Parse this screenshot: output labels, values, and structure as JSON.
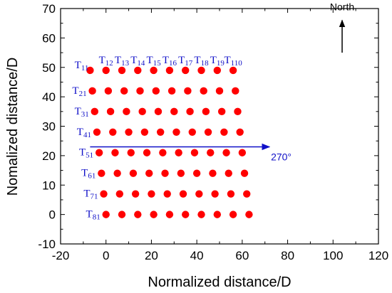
{
  "chart_data": {
    "type": "scatter",
    "title": "",
    "xlabel": "Normalized distance/D",
    "ylabel": "Nomalized distance/D",
    "xlim": [
      -20,
      120
    ],
    "ylim": [
      -10,
      70
    ],
    "x_ticks": [
      "-20",
      "0",
      "20",
      "40",
      "60",
      "80",
      "100",
      "120"
    ],
    "y_ticks": [
      "-10",
      "0",
      "10",
      "20",
      "30",
      "40",
      "50",
      "60",
      "70"
    ],
    "marker_color": "#ff0000",
    "series": [
      {
        "label": "T81",
        "points": [
          [
            0,
            0
          ],
          [
            7,
            0
          ],
          [
            14,
            0
          ],
          [
            21,
            0
          ],
          [
            28,
            0
          ],
          [
            35,
            0
          ],
          [
            42,
            0
          ],
          [
            49,
            0
          ],
          [
            56,
            0
          ],
          [
            63,
            0
          ]
        ]
      },
      {
        "label": "T71",
        "points": [
          [
            -1,
            7
          ],
          [
            6,
            7
          ],
          [
            13,
            7
          ],
          [
            20,
            7
          ],
          [
            27,
            7
          ],
          [
            34,
            7
          ],
          [
            41,
            7
          ],
          [
            48,
            7
          ],
          [
            55,
            7
          ],
          [
            62,
            7
          ]
        ]
      },
      {
        "label": "T61",
        "points": [
          [
            -2,
            14
          ],
          [
            5,
            14
          ],
          [
            12,
            14
          ],
          [
            19,
            14
          ],
          [
            26,
            14
          ],
          [
            33,
            14
          ],
          [
            40,
            14
          ],
          [
            47,
            14
          ],
          [
            54,
            14
          ],
          [
            61,
            14
          ]
        ]
      },
      {
        "label": "T51",
        "points": [
          [
            -3,
            21
          ],
          [
            4,
            21
          ],
          [
            11,
            21
          ],
          [
            18,
            21
          ],
          [
            25,
            21
          ],
          [
            32,
            21
          ],
          [
            39,
            21
          ],
          [
            46,
            21
          ],
          [
            53,
            21
          ],
          [
            60,
            21
          ]
        ]
      },
      {
        "label": "T41",
        "points": [
          [
            -4,
            28
          ],
          [
            3,
            28
          ],
          [
            10,
            28
          ],
          [
            17,
            28
          ],
          [
            24,
            28
          ],
          [
            31,
            28
          ],
          [
            38,
            28
          ],
          [
            45,
            28
          ],
          [
            52,
            28
          ],
          [
            59,
            28
          ]
        ]
      },
      {
        "label": "T31",
        "points": [
          [
            -5,
            35
          ],
          [
            2,
            35
          ],
          [
            9,
            35
          ],
          [
            16,
            35
          ],
          [
            23,
            35
          ],
          [
            30,
            35
          ],
          [
            37,
            35
          ],
          [
            44,
            35
          ],
          [
            51,
            35
          ],
          [
            58,
            35
          ]
        ]
      },
      {
        "label": "T21",
        "points": [
          [
            -6,
            42
          ],
          [
            1,
            42
          ],
          [
            8,
            42
          ],
          [
            15,
            42
          ],
          [
            22,
            42
          ],
          [
            29,
            42
          ],
          [
            36,
            42
          ],
          [
            43,
            42
          ],
          [
            50,
            42
          ],
          [
            57,
            42
          ]
        ]
      },
      {
        "label": "T11",
        "points": [
          [
            -7,
            49
          ],
          [
            0,
            49
          ],
          [
            7,
            49
          ],
          [
            14,
            49
          ],
          [
            21,
            49
          ],
          [
            28,
            49
          ],
          [
            35,
            49
          ],
          [
            42,
            49
          ],
          [
            49,
            49
          ],
          [
            56,
            49
          ]
        ]
      }
    ],
    "top_row_labels": [
      "T11",
      "T12",
      "T13",
      "T14",
      "T15",
      "T16",
      "T17",
      "T18",
      "T19",
      "T110"
    ],
    "wind_arrow": {
      "label": "270°",
      "from": [
        -7,
        23
      ],
      "to": [
        72,
        23
      ],
      "color": "#1010c8"
    },
    "north_arrow": {
      "label": "North",
      "from": [
        104,
        55
      ],
      "to": [
        104,
        66
      ]
    }
  }
}
